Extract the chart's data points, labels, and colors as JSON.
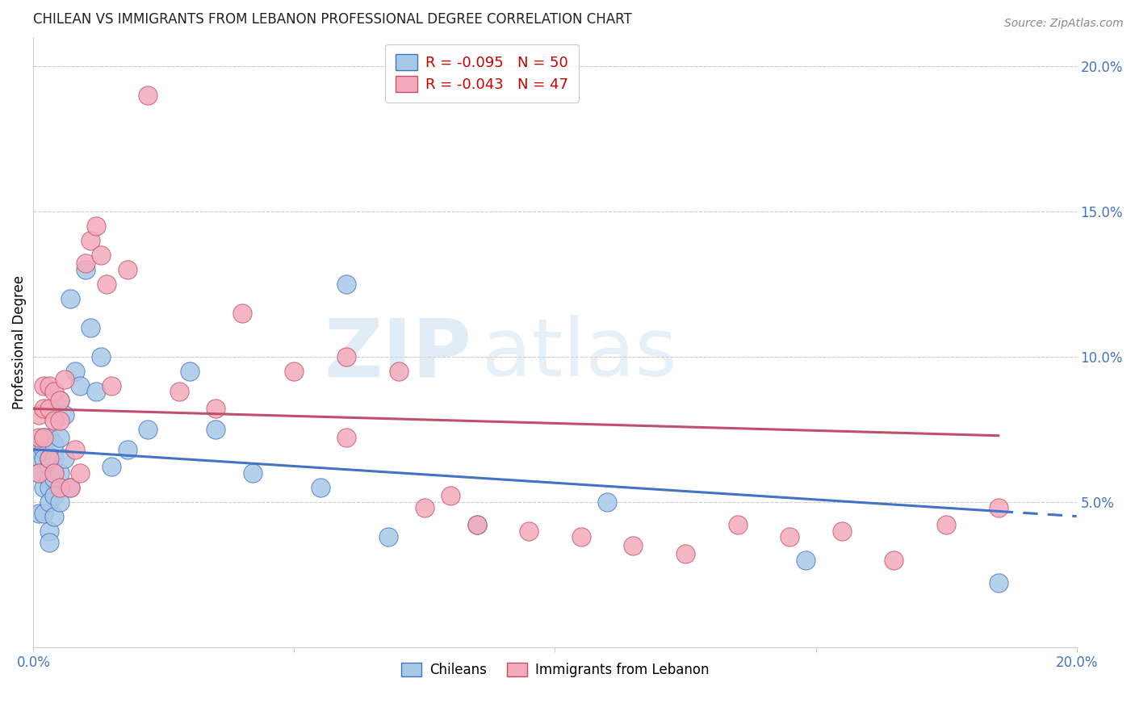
{
  "title": "CHILEAN VS IMMIGRANTS FROM LEBANON PROFESSIONAL DEGREE CORRELATION CHART",
  "source": "Source: ZipAtlas.com",
  "ylabel": "Professional Degree",
  "right_yticks": [
    0.0,
    0.05,
    0.1,
    0.15,
    0.2
  ],
  "right_yticklabels": [
    "",
    "5.0%",
    "10.0%",
    "15.0%",
    "20.0%"
  ],
  "xlim": [
    0.0,
    0.2
  ],
  "ylim": [
    0.0,
    0.21
  ],
  "legend_r1": "R = -0.095",
  "legend_n1": "N = 50",
  "legend_r2": "R = -0.043",
  "legend_n2": "N = 47",
  "chileans_color": "#A8C8E8",
  "lebanon_color": "#F4AABB",
  "trendline_chilean_color": "#4472C4",
  "trendline_lebanon_color": "#C0506A",
  "watermark_zip": "ZIP",
  "watermark_atlas": "atlas",
  "chileans_x": [
    0.001,
    0.001,
    0.001,
    0.001,
    0.002,
    0.002,
    0.002,
    0.002,
    0.002,
    0.003,
    0.003,
    0.003,
    0.003,
    0.003,
    0.003,
    0.003,
    0.003,
    0.004,
    0.004,
    0.004,
    0.004,
    0.004,
    0.004,
    0.005,
    0.005,
    0.005,
    0.005,
    0.006,
    0.006,
    0.007,
    0.007,
    0.008,
    0.009,
    0.01,
    0.011,
    0.012,
    0.013,
    0.015,
    0.018,
    0.022,
    0.03,
    0.035,
    0.042,
    0.055,
    0.06,
    0.068,
    0.085,
    0.11,
    0.148,
    0.185
  ],
  "chileans_y": [
    0.068,
    0.065,
    0.06,
    0.046,
    0.072,
    0.068,
    0.065,
    0.055,
    0.046,
    0.072,
    0.065,
    0.062,
    0.058,
    0.055,
    0.05,
    0.04,
    0.036,
    0.07,
    0.065,
    0.06,
    0.058,
    0.052,
    0.045,
    0.085,
    0.072,
    0.06,
    0.05,
    0.08,
    0.065,
    0.12,
    0.055,
    0.095,
    0.09,
    0.13,
    0.11,
    0.088,
    0.1,
    0.062,
    0.068,
    0.075,
    0.095,
    0.075,
    0.06,
    0.055,
    0.125,
    0.038,
    0.042,
    0.05,
    0.03,
    0.022
  ],
  "lebanon_x": [
    0.001,
    0.001,
    0.001,
    0.002,
    0.002,
    0.002,
    0.003,
    0.003,
    0.003,
    0.004,
    0.004,
    0.004,
    0.005,
    0.005,
    0.005,
    0.006,
    0.007,
    0.008,
    0.009,
    0.01,
    0.011,
    0.012,
    0.013,
    0.014,
    0.015,
    0.018,
    0.022,
    0.028,
    0.035,
    0.04,
    0.05,
    0.06,
    0.075,
    0.085,
    0.095,
    0.105,
    0.115,
    0.125,
    0.135,
    0.145,
    0.155,
    0.165,
    0.175,
    0.185,
    0.06,
    0.07,
    0.08
  ],
  "lebanon_y": [
    0.08,
    0.072,
    0.06,
    0.09,
    0.082,
    0.072,
    0.09,
    0.082,
    0.065,
    0.088,
    0.078,
    0.06,
    0.085,
    0.078,
    0.055,
    0.092,
    0.055,
    0.068,
    0.06,
    0.132,
    0.14,
    0.145,
    0.135,
    0.125,
    0.09,
    0.13,
    0.19,
    0.088,
    0.082,
    0.115,
    0.095,
    0.072,
    0.048,
    0.042,
    0.04,
    0.038,
    0.035,
    0.032,
    0.042,
    0.038,
    0.04,
    0.03,
    0.042,
    0.048,
    0.1,
    0.095,
    0.052
  ],
  "trendline_chilean_y0": 0.068,
  "trendline_chilean_y20": 0.045,
  "trendline_chilean_solid_end": 0.185,
  "trendline_lebanon_y0": 0.082,
  "trendline_lebanon_y20": 0.072,
  "trendline_lebanon_solid_end": 0.185
}
